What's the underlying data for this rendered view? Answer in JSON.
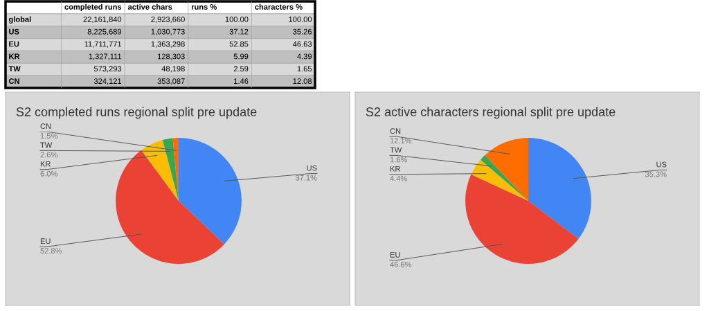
{
  "chart_data": [
    {
      "type": "other",
      "categories": [
        "completed runs",
        "active chars",
        "runs %",
        "characters %"
      ],
      "y_categories": [
        "global",
        "US",
        "EU",
        "KR",
        "TW",
        "CN"
      ],
      "cell_labels": [
        [
          "22,161,840",
          "2,923,660",
          "100.00",
          "100.00"
        ],
        [
          "8,225,689",
          "1,030,773",
          "37.12",
          "35.26"
        ],
        [
          "11,711,771",
          "1,363,298",
          "52.85",
          "46.63"
        ],
        [
          "1,327,111",
          "128,303",
          "5.99",
          "4.39"
        ],
        [
          "573,293",
          "48,198",
          "2.59",
          "1.65"
        ],
        [
          "324,121",
          "353,087",
          "1.46",
          "12.08"
        ]
      ]
    },
    {
      "type": "pie",
      "title": "S2 completed runs regional split pre update",
      "categories": [
        "US",
        "EU",
        "KR",
        "TW",
        "CN"
      ],
      "values": [
        37.1,
        52.8,
        6.0,
        2.6,
        1.5
      ],
      "value_labels": [
        "37.1%",
        "52.8%",
        "6.0%",
        "2.6%",
        "1.5%"
      ],
      "colors": [
        "#4285f4",
        "#ea4335",
        "#fbbc04",
        "#34a853",
        "#ff6d01"
      ]
    },
    {
      "type": "pie",
      "title": "S2 active characters regional split pre update",
      "categories": [
        "US",
        "EU",
        "KR",
        "TW",
        "CN"
      ],
      "values": [
        35.3,
        46.6,
        4.4,
        1.6,
        12.1
      ],
      "value_labels": [
        "35.3%",
        "46.6%",
        "4.4%",
        "1.6%",
        "12.1%"
      ],
      "colors": [
        "#4285f4",
        "#ea4335",
        "#fbbc04",
        "#34a853",
        "#ff6d01"
      ]
    }
  ]
}
